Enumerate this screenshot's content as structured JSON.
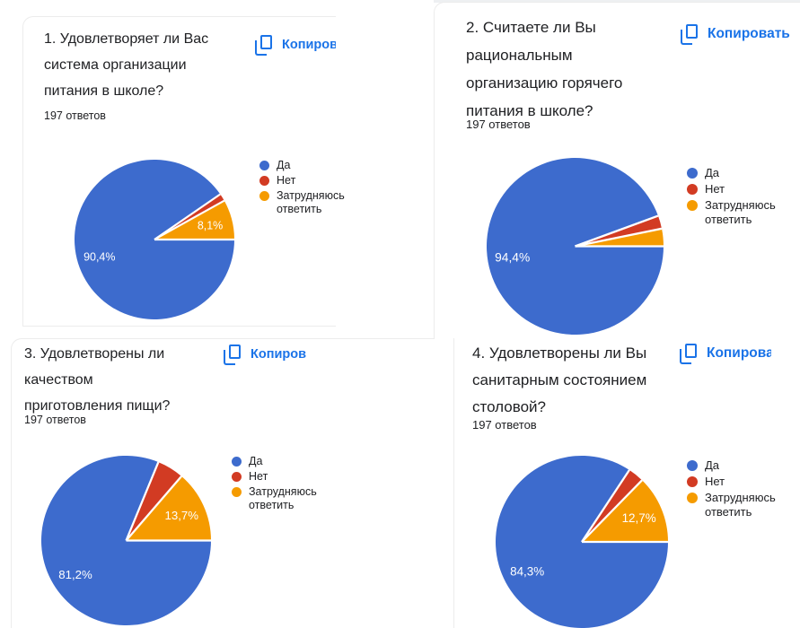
{
  "ui": {
    "copy_label": "Копировать",
    "copy_color": "#1a73e8",
    "slice_colors": [
      "#3d6bcd",
      "#d23b23",
      "#f59b00"
    ],
    "text_color": "#202124",
    "slice_label_color": "#ffffff"
  },
  "chart_data": [
    {
      "type": "pie",
      "title": "1. Удовлетворяет ли Вас система организации питания в школе?",
      "responses_label": "197 ответов",
      "categories": [
        "Да",
        "Нет",
        "Затрудняюсь ответить"
      ],
      "values": [
        90.4,
        1.5,
        8.1
      ],
      "value_labels": [
        "90,4%",
        "",
        "8,1%"
      ],
      "legend_position": "right"
    },
    {
      "type": "pie",
      "title": "2. Считаете ли Вы рациональным организацию горячего питания в школе?",
      "responses_label": "197 ответов",
      "categories": [
        "Да",
        "Нет",
        "Затрудняюсь ответить"
      ],
      "values": [
        94.4,
        2.4,
        3.2
      ],
      "value_labels": [
        "94,4%",
        "",
        ""
      ],
      "legend_position": "right"
    },
    {
      "type": "pie",
      "title": "3. Удовлетворены ли качеством приготовления пищи?",
      "responses_label": "197 ответов",
      "categories": [
        "Да",
        "Нет",
        "Затрудняюсь ответить"
      ],
      "values": [
        81.2,
        5.1,
        13.7
      ],
      "value_labels": [
        "81,2%",
        "",
        "13,7%"
      ],
      "legend_position": "right"
    },
    {
      "type": "pie",
      "title": "4. Удовлетворены ли Вы санитарным состоянием столовой?",
      "responses_label": "197 ответов",
      "categories": [
        "Да",
        "Нет",
        "Затрудняюсь ответить"
      ],
      "values": [
        84.3,
        3.0,
        12.7
      ],
      "value_labels": [
        "84,3%",
        "",
        "12,7%"
      ],
      "legend_position": "right"
    }
  ]
}
